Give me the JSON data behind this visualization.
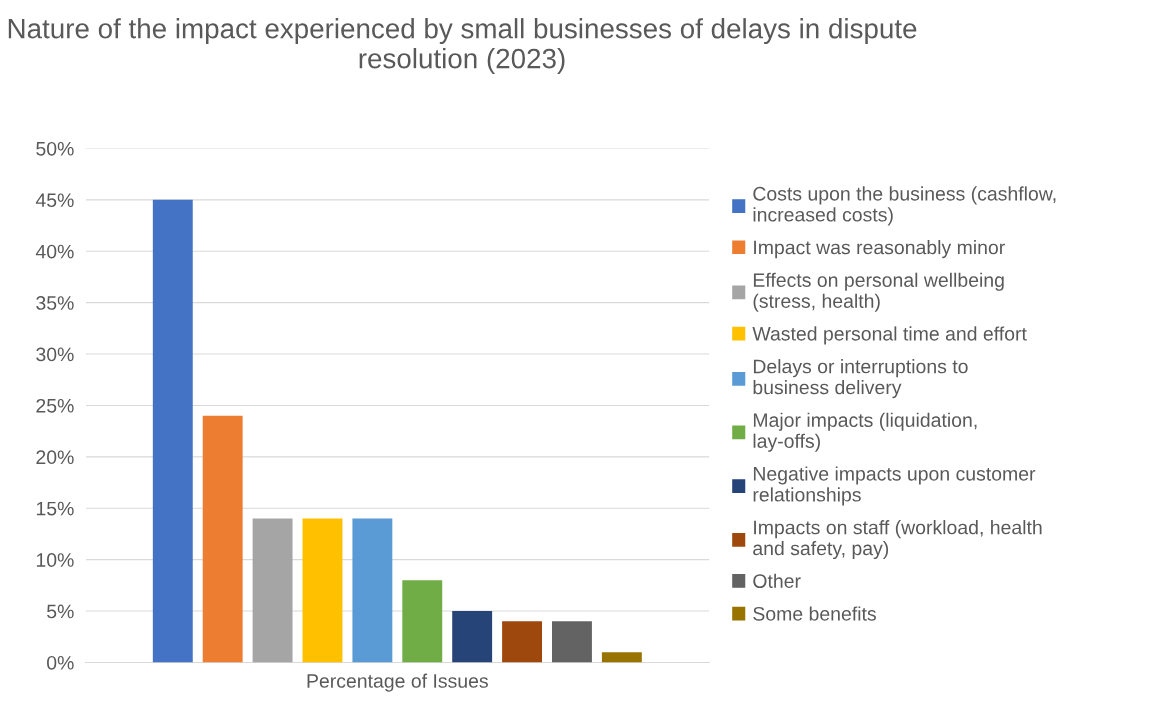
{
  "chart_data": {
    "type": "bar",
    "title": "Nature of the impact experienced by small businesses of delays in dispute resolution (2023)",
    "categories": [
      "Percentage of Issues"
    ],
    "series": [
      {
        "name": "Costs upon the business (cashflow, increased costs)",
        "color": "#4472c4",
        "values": [
          45
        ]
      },
      {
        "name": "Impact was reasonably minor",
        "color": "#ed7d31",
        "values": [
          24
        ]
      },
      {
        "name": "Effects on personal wellbeing (stress, health)",
        "color": "#a5a5a5",
        "values": [
          14
        ]
      },
      {
        "name": "Wasted personal time and effort",
        "color": "#ffc000",
        "values": [
          14
        ]
      },
      {
        "name": "Delays or interruptions to business delivery",
        "color": "#5b9bd5",
        "values": [
          14
        ]
      },
      {
        "name": "Major impacts (liquidation, lay-offs)",
        "color": "#70ad47",
        "values": [
          8
        ]
      },
      {
        "name": "Negative impacts upon customer relationships",
        "color": "#264478",
        "values": [
          5
        ]
      },
      {
        "name": "Impacts on staff (workload, health and safety, pay)",
        "color": "#9e480e",
        "values": [
          4
        ]
      },
      {
        "name": "Other",
        "color": "#636363",
        "values": [
          4
        ]
      },
      {
        "name": "Some benefits",
        "color": "#997300",
        "values": [
          1
        ]
      }
    ],
    "ylim": [
      0,
      50
    ],
    "yticks": [
      {
        "value": 0,
        "label": "0%"
      },
      {
        "value": 5,
        "label": "5%"
      },
      {
        "value": 10,
        "label": "10%"
      },
      {
        "value": 15,
        "label": "15%"
      },
      {
        "value": 20,
        "label": "20%"
      },
      {
        "value": 25,
        "label": "25%"
      },
      {
        "value": 30,
        "label": "30%"
      },
      {
        "value": 35,
        "label": "35%"
      },
      {
        "value": 40,
        "label": "40%"
      },
      {
        "value": 45,
        "label": "45%"
      },
      {
        "value": 50,
        "label": "50%"
      }
    ],
    "grid": "y",
    "legend": "right"
  }
}
